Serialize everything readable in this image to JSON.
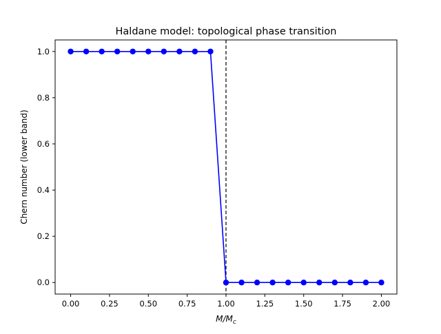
{
  "chart_data": {
    "type": "line",
    "title": "Haldane model: topological phase transition",
    "xlabel": "M/Mc",
    "xlabel_base": "M/M",
    "xlabel_sub": "c",
    "ylabel": "Chern number (lower band)",
    "xlim": [
      -0.1,
      2.1
    ],
    "ylim": [
      -0.05,
      1.05
    ],
    "x_ticks": [
      0.0,
      0.25,
      0.5,
      0.75,
      1.0,
      1.25,
      1.5,
      1.75,
      2.0
    ],
    "x_tick_labels": [
      "0.00",
      "0.25",
      "0.50",
      "0.75",
      "1.00",
      "1.25",
      "1.50",
      "1.75",
      "2.00"
    ],
    "y_ticks": [
      0.0,
      0.2,
      0.4,
      0.6,
      0.8,
      1.0
    ],
    "y_tick_labels": [
      "0.0",
      "0.2",
      "0.4",
      "0.6",
      "0.8",
      "1.0"
    ],
    "grid": false,
    "vline": {
      "x": 1.0,
      "style": "dashed",
      "color": "#000000"
    },
    "series": [
      {
        "color": "#0000ff",
        "marker": "circle",
        "x": [
          0.0,
          0.1,
          0.2,
          0.3,
          0.4,
          0.5,
          0.6,
          0.7,
          0.8,
          0.9,
          1.0,
          1.1,
          1.2,
          1.3,
          1.4,
          1.5,
          1.6,
          1.7,
          1.8,
          1.9,
          2.0
        ],
        "y": [
          1,
          1,
          1,
          1,
          1,
          1,
          1,
          1,
          1,
          1,
          0,
          0,
          0,
          0,
          0,
          0,
          0,
          0,
          0,
          0,
          0
        ]
      }
    ]
  }
}
